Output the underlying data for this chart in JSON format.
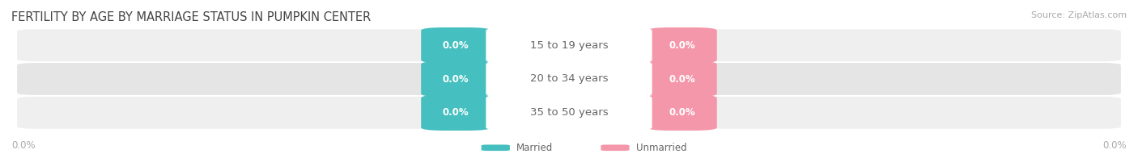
{
  "title": "FERTILITY BY AGE BY MARRIAGE STATUS IN PUMPKIN CENTER",
  "source": "Source: ZipAtlas.com",
  "categories": [
    "15 to 19 years",
    "20 to 34 years",
    "35 to 50 years"
  ],
  "married_values": [
    0.0,
    0.0,
    0.0
  ],
  "unmarried_values": [
    0.0,
    0.0,
    0.0
  ],
  "married_color": "#45bfbf",
  "unmarried_color": "#f497aa",
  "row_bg_colors": [
    "#efefef",
    "#e5e5e5",
    "#efefef"
  ],
  "title_color": "#444444",
  "text_color": "#666666",
  "axis_label_color": "#aaaaaa",
  "background_color": "#ffffff",
  "legend_married": "Married",
  "legend_unmarried": "Unmarried",
  "title_fontsize": 10.5,
  "source_fontsize": 8,
  "label_fontsize": 8.5,
  "category_fontsize": 9.5,
  "axis_tick_fontsize": 8.5
}
